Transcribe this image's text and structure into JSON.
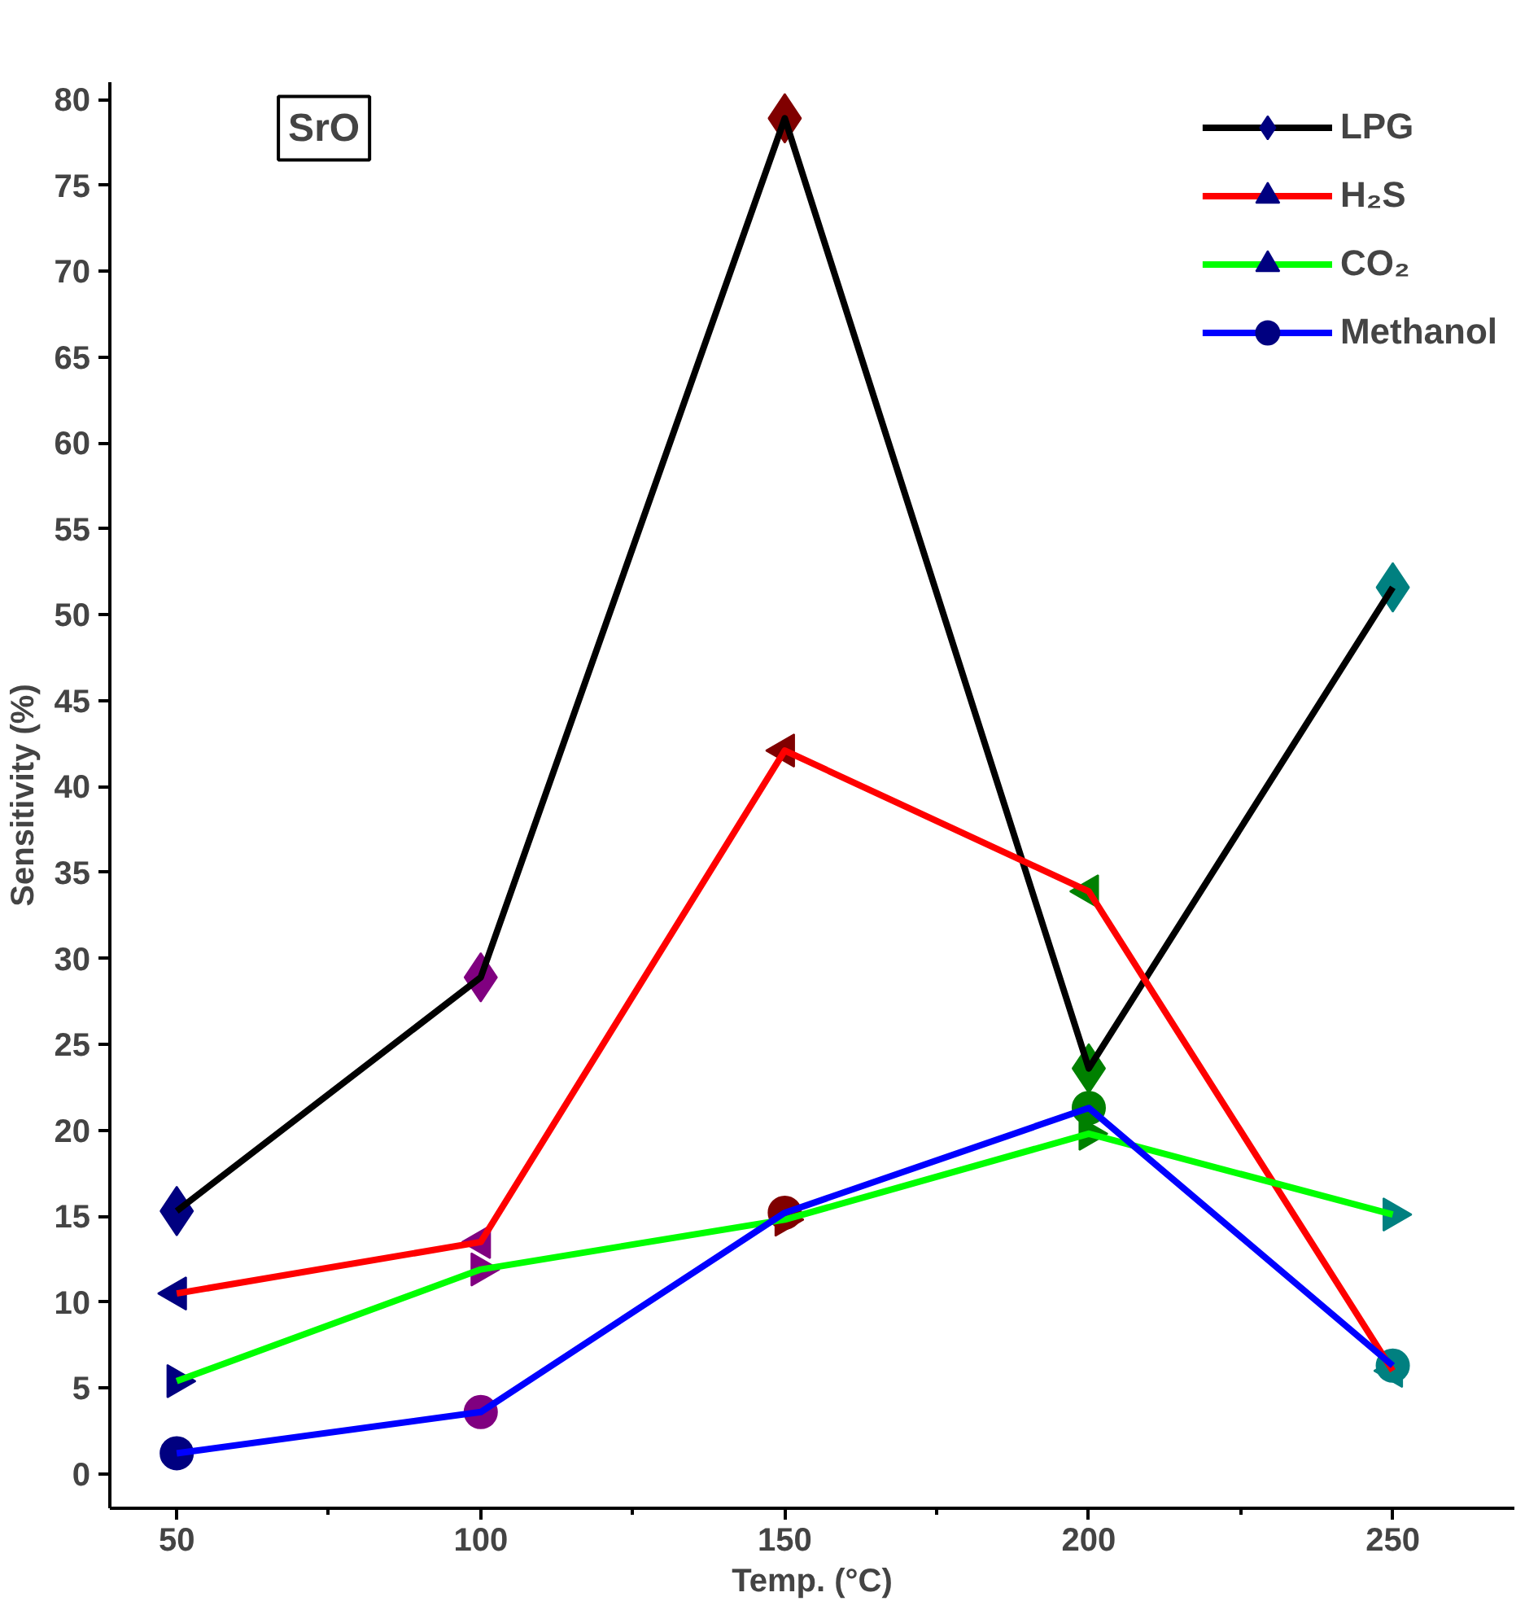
{
  "chart_data": {
    "type": "line",
    "title": "SrO",
    "xlabel": "Temp. (°C)",
    "ylabel": "Sensitivity (%)",
    "x": [
      50,
      100,
      150,
      200,
      250
    ],
    "series": [
      {
        "name": "LPG",
        "color": "#000000",
        "marker": "diamond",
        "colors": [
          "#000080",
          "#800080",
          "#800000",
          "#008000",
          "#008080"
        ],
        "values": [
          15.3,
          28.9,
          78.9,
          23.6,
          51.6
        ]
      },
      {
        "name": "H₂S",
        "color": "#ff0000",
        "marker": "triangle-left",
        "colors": [
          "#000080",
          "#800080",
          "#800000",
          "#008000",
          "#008080"
        ],
        "values": [
          10.5,
          13.5,
          42.1,
          33.9,
          6
        ]
      },
      {
        "name": "CO₂",
        "color": "#00ff00",
        "marker": "triangle-right",
        "colors": [
          "#000080",
          "#800080",
          "#800000",
          "#008000",
          "#008080"
        ],
        "values": [
          5.4,
          11.9,
          14.8,
          19.8,
          15.1
        ]
      },
      {
        "name": "Methanol",
        "color": "#0000ff",
        "marker": "circle",
        "colors": [
          "#000080",
          "#800080",
          "#800000",
          "#008000",
          "#008080"
        ],
        "values": [
          1.2,
          3.6,
          15.2,
          21.3,
          6.3
        ]
      }
    ],
    "xlim": [
      39,
      270
    ],
    "ylim": [
      -2,
      81
    ],
    "xticks": [
      50,
      {
        "value": 75,
        "label": null
      },
      100,
      {
        "value": 125,
        "label": null
      },
      150,
      {
        "value": 175,
        "label": null
      },
      200,
      {
        "value": 225,
        "label": null
      },
      250
    ],
    "yticks": [
      0,
      5,
      10,
      15,
      20,
      25,
      30,
      35,
      40,
      45,
      50,
      55,
      60,
      65,
      70,
      75,
      80
    ],
    "grid": false,
    "legend": "top right",
    "line_style": "solid"
  }
}
